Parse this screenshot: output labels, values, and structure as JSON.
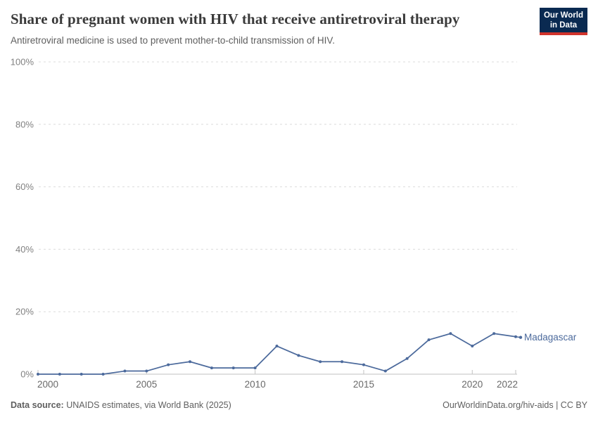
{
  "header": {
    "title": "Share of pregnant women with HIV that receive antiretroviral therapy",
    "subtitle": "Antiretroviral medicine is used to prevent mother-to-child transmission of HIV.",
    "logo_line1": "Our World",
    "logo_line2": "in Data"
  },
  "chart_data": {
    "type": "line",
    "title": "Share of pregnant women with HIV that receive antiretroviral therapy",
    "xlabel": "",
    "ylabel": "",
    "x": [
      2000,
      2001,
      2002,
      2003,
      2004,
      2005,
      2006,
      2007,
      2008,
      2009,
      2010,
      2011,
      2012,
      2013,
      2014,
      2015,
      2016,
      2017,
      2018,
      2019,
      2020,
      2021,
      2022
    ],
    "series": [
      {
        "name": "Madagascar",
        "color": "#4C6A9C",
        "values": [
          0,
          0,
          0,
          0,
          1,
          1,
          3,
          4,
          2,
          2,
          2,
          9,
          6,
          4,
          4,
          3,
          1,
          5,
          11,
          13,
          9,
          13,
          12
        ]
      }
    ],
    "xlim": [
      2000,
      2022
    ],
    "ylim": [
      0,
      100
    ],
    "xticks": [
      2000,
      2005,
      2010,
      2015,
      2020,
      2022
    ],
    "yticks": [
      0,
      20,
      40,
      60,
      80,
      100
    ],
    "ytick_suffix": "%",
    "grid": "horizontal-dashed",
    "legend": "end-of-line-label"
  },
  "footer": {
    "source_label": "Data source:",
    "source_text": " UNAIDS estimates, via World Bank (2025)",
    "credit": "OurWorldinData.org/hiv-aids | CC BY"
  },
  "colors": {
    "logo_navy": "#0a2a51",
    "logo_red": "#d0342c",
    "grid_line": "#dcdcdc",
    "axis_line": "#c2c2c2",
    "series_blue": "#4C6A9C"
  }
}
